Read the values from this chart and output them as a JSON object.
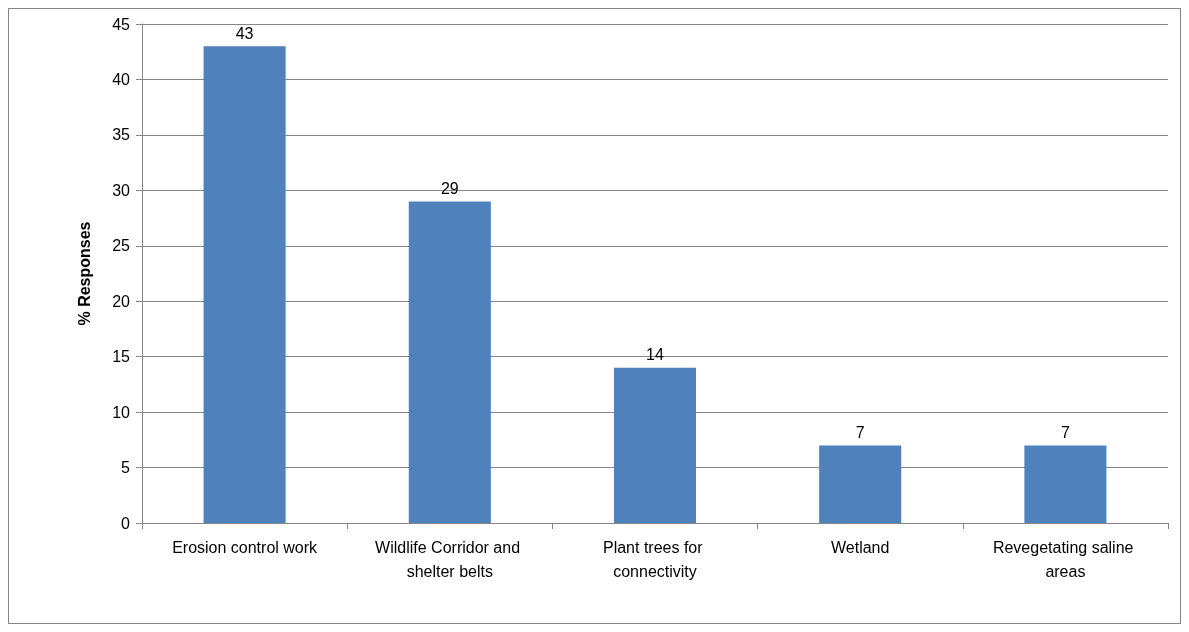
{
  "chart_data": {
    "type": "bar",
    "ylabel": "% Responses",
    "categories": [
      "Erosion control work",
      "Wildlife Corridor and shelter belts",
      "Plant trees for connectivity",
      "Wetland",
      "Revegetating saline areas"
    ],
    "values": [
      43,
      29,
      14,
      7,
      7
    ],
    "color": "#4f81bd",
    "data_labels": true,
    "ylim": [
      0,
      45
    ],
    "yticks": [
      0,
      5,
      10,
      15,
      20,
      25,
      30,
      35,
      40,
      45
    ],
    "grid": "y"
  }
}
